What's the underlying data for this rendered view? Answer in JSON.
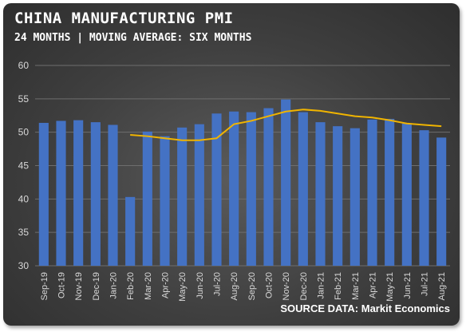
{
  "title": "CHINA MANUFACTURING PMI",
  "subtitle": "24 MONTHS | MOVING AVERAGE: SIX MONTHS",
  "source": "SOURCE DATA: Markit Economics",
  "colors": {
    "bar": "#4472c4",
    "line": "#f0b400",
    "grid": "#6e6e6e",
    "text": "#d9d9d9"
  },
  "chart_data": {
    "type": "bar",
    "title": "CHINA MANUFACTURING PMI",
    "subtitle": "24 MONTHS | MOVING AVERAGE: SIX MONTHS",
    "categories": [
      "Sep-19",
      "Oct-19",
      "Nov-19",
      "Dec-19",
      "Jan-20",
      "Feb-20",
      "Mar-20",
      "Apr-20",
      "May-20",
      "Jun-20",
      "Jul-20",
      "Aug-20",
      "Sep-20",
      "Oct-20",
      "Nov-20",
      "Dec-20",
      "Jan-21",
      "Feb-21",
      "Mar-21",
      "Apr-21",
      "May-21",
      "Jun-21",
      "Jul-21",
      "Aug-21"
    ],
    "series": [
      {
        "type": "bar",
        "values": [
          51.4,
          51.7,
          51.8,
          51.5,
          51.1,
          40.3,
          50.1,
          49.4,
          50.7,
          51.2,
          52.8,
          53.1,
          53.0,
          53.6,
          54.9,
          53.0,
          51.5,
          50.9,
          50.6,
          51.9,
          52.0,
          51.3,
          50.3,
          49.2
        ]
      },
      {
        "type": "line",
        "values": [
          null,
          null,
          null,
          null,
          null,
          49.6,
          49.4,
          49.1,
          48.8,
          48.8,
          49.1,
          51.2,
          51.7,
          52.4,
          53.1,
          53.4,
          53.2,
          52.8,
          52.4,
          52.2,
          51.8,
          51.3,
          51.1,
          50.9
        ]
      }
    ],
    "yticks": [
      30,
      35,
      40,
      45,
      50,
      55,
      60
    ],
    "ylim": [
      30,
      60
    ],
    "grid": true,
    "xlabel": "",
    "ylabel": ""
  }
}
